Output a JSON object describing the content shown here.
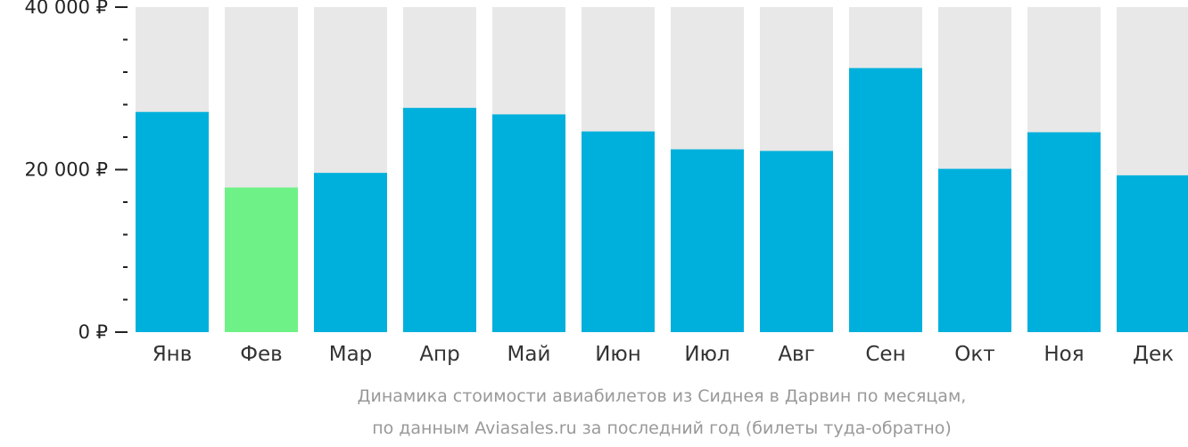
{
  "chart_data": {
    "type": "bar",
    "categories": [
      "Янв",
      "Фев",
      "Мар",
      "Апр",
      "Май",
      "Июн",
      "Июл",
      "Авг",
      "Сен",
      "Окт",
      "Ноя",
      "Дек"
    ],
    "values": [
      27100,
      17800,
      19600,
      27600,
      26800,
      24700,
      22500,
      22300,
      32500,
      20100,
      24600,
      19300
    ],
    "ylim": [
      0,
      40000
    ],
    "y_ticks": [
      {
        "value": 0,
        "label": "0 ₽"
      },
      {
        "value": 20000,
        "label": "20 000 ₽"
      },
      {
        "value": 40000,
        "label": "40 000 ₽"
      }
    ],
    "minor_tick_step": 4000,
    "highlight_category": "Фев",
    "colors": {
      "bar": "#00b0dc",
      "highlight": "#6ef287",
      "track": "#e8e8e8",
      "axis": "#222222"
    },
    "caption_lines": [
      "Динамика стоимости авиабилетов из Сиднея в Дарвин по месяцам,",
      "по данным Aviasales.ru за последний год (билеты туда-обратно)"
    ]
  }
}
